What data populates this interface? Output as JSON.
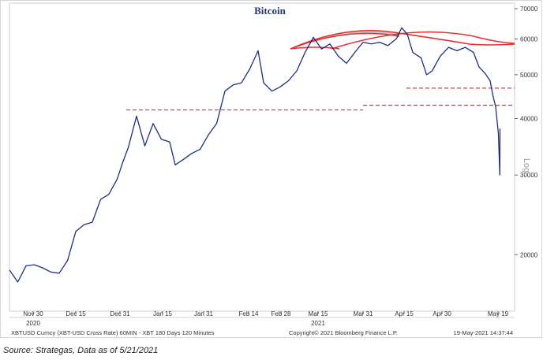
{
  "chart_data": {
    "type": "line",
    "title": "Bitcoin",
    "scale_label": "Log",
    "y_scale": "log",
    "ylim": [
      15000,
      72000
    ],
    "y_ticks": [
      {
        "label": "70000",
        "value": 70000
      },
      {
        "label": "60000",
        "value": 60000
      },
      {
        "label": "50000",
        "value": 50000
      },
      {
        "label": "40000",
        "value": 40000
      },
      {
        "label": "30000",
        "value": 30000
      },
      {
        "label": "20000",
        "value": 20000
      }
    ],
    "x_ticks": [
      {
        "label": "Nov 30",
        "year": "2020"
      },
      {
        "label": "Dec 15",
        "year": ""
      },
      {
        "label": "Dec 31",
        "year": ""
      },
      {
        "label": "Jan 15",
        "year": ""
      },
      {
        "label": "Jan 31",
        "year": ""
      },
      {
        "label": "Feb 14",
        "year": ""
      },
      {
        "label": "Feb 28",
        "year": ""
      },
      {
        "label": "Mar 15",
        "year": "2021"
      },
      {
        "label": "Mar 31",
        "year": ""
      },
      {
        "label": "Apr 15",
        "year": ""
      },
      {
        "label": "Apr 30",
        "year": ""
      },
      {
        "label": "May 19",
        "year": ""
      }
    ],
    "series": [
      {
        "color": "#1c2f80",
        "x": [
          "2020-11-23",
          "2020-11-26",
          "2020-11-29",
          "2020-12-02",
          "2020-12-05",
          "2020-12-08",
          "2020-12-11",
          "2020-12-14",
          "2020-12-17",
          "2020-12-20",
          "2020-12-23",
          "2020-12-26",
          "2020-12-29",
          "2021-01-01",
          "2021-01-03",
          "2021-01-05",
          "2021-01-08",
          "2021-01-11",
          "2021-01-14",
          "2021-01-17",
          "2021-01-20",
          "2021-01-22",
          "2021-01-25",
          "2021-01-28",
          "2021-01-31",
          "2021-02-03",
          "2021-02-06",
          "2021-02-09",
          "2021-02-12",
          "2021-02-15",
          "2021-02-18",
          "2021-02-21",
          "2021-02-23",
          "2021-02-26",
          "2021-03-01",
          "2021-03-04",
          "2021-03-07",
          "2021-03-10",
          "2021-03-13",
          "2021-03-16",
          "2021-03-19",
          "2021-03-22",
          "2021-03-25",
          "2021-03-28",
          "2021-03-31",
          "2021-04-03",
          "2021-04-06",
          "2021-04-09",
          "2021-04-12",
          "2021-04-14",
          "2021-04-16",
          "2021-04-18",
          "2021-04-21",
          "2021-04-23",
          "2021-04-25",
          "2021-04-28",
          "2021-05-01",
          "2021-05-04",
          "2021-05-07",
          "2021-05-10",
          "2021-05-12",
          "2021-05-14",
          "2021-05-16",
          "2021-05-17",
          "2021-05-18",
          "2021-05-19",
          "2021-05-19T12:00",
          "2021-05-19T14:00"
        ],
        "values": [
          18500,
          17400,
          18900,
          19000,
          18700,
          18300,
          18200,
          19400,
          22500,
          23300,
          23600,
          26500,
          27200,
          29400,
          32000,
          34500,
          40500,
          34800,
          39000,
          36000,
          35500,
          31600,
          32500,
          33500,
          34200,
          36800,
          39000,
          46000,
          47500,
          48000,
          51500,
          56500,
          48000,
          46000,
          47000,
          48500,
          51000,
          56000,
          60500,
          57000,
          58500,
          55000,
          53000,
          56000,
          59000,
          58500,
          59000,
          58000,
          60000,
          63500,
          61500,
          56000,
          54500,
          50000,
          51000,
          55000,
          57500,
          56500,
          57500,
          56000,
          52000,
          50500,
          48500,
          45000,
          42500,
          37000,
          30000,
          38000
        ]
      }
    ],
    "support_levels": [
      41800,
      42800,
      46700
    ],
    "footer_left": "XBTUSD Curncy (XBT-USD Cross Rate) 60MIN - XBT 180 Days 120 Minutes",
    "footer_center": "Copyright© 2021 Bloomberg Finance L.P.",
    "footer_right": "19-May-2021 14:37:44"
  },
  "source_note": "Source: Strategas, Data as of 5/21/2021"
}
